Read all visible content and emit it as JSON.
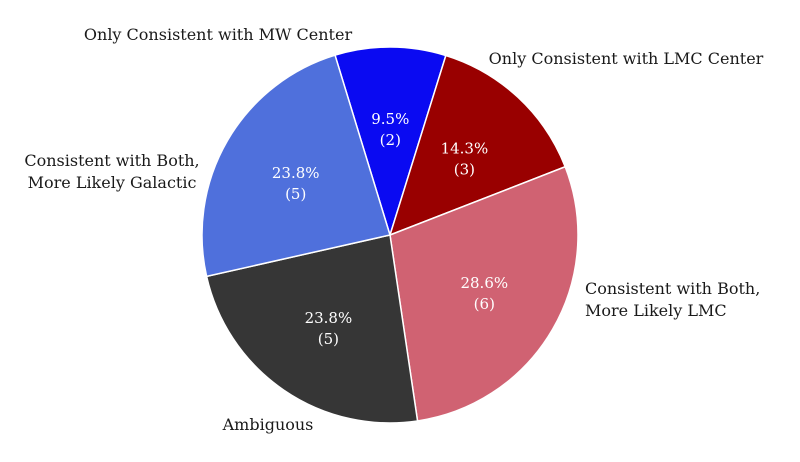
{
  "chart_data": {
    "type": "pie",
    "title": "",
    "slices": [
      {
        "label": "Only Consistent with MW Center",
        "label_lines": [
          "Only Consistent with MW Center"
        ],
        "percent": "9.5%",
        "count": 2,
        "count_text": "(2)",
        "color": "#0a0af2"
      },
      {
        "label": "Only Consistent with LMC Center",
        "label_lines": [
          "Only Consistent with LMC Center"
        ],
        "percent": "14.3%",
        "count": 3,
        "count_text": "(3)",
        "color": "#990000"
      },
      {
        "label": "Consistent with Both, More Likely LMC",
        "label_lines": [
          "Consistent with Both,",
          "More Likely LMC"
        ],
        "percent": "28.6%",
        "count": 6,
        "count_text": "(6)",
        "color": "#d06272"
      },
      {
        "label": "Ambiguous",
        "label_lines": [
          "Ambiguous"
        ],
        "percent": "23.8%",
        "count": 5,
        "count_text": "(5)",
        "color": "#363636"
      },
      {
        "label": "Consistent with Both, More Likely Galactic",
        "label_lines": [
          "Consistent with Both,",
          "More Likely Galactic"
        ],
        "percent": "23.8%",
        "count": 5,
        "count_text": "(5)",
        "color": "#4f70dc"
      }
    ]
  }
}
